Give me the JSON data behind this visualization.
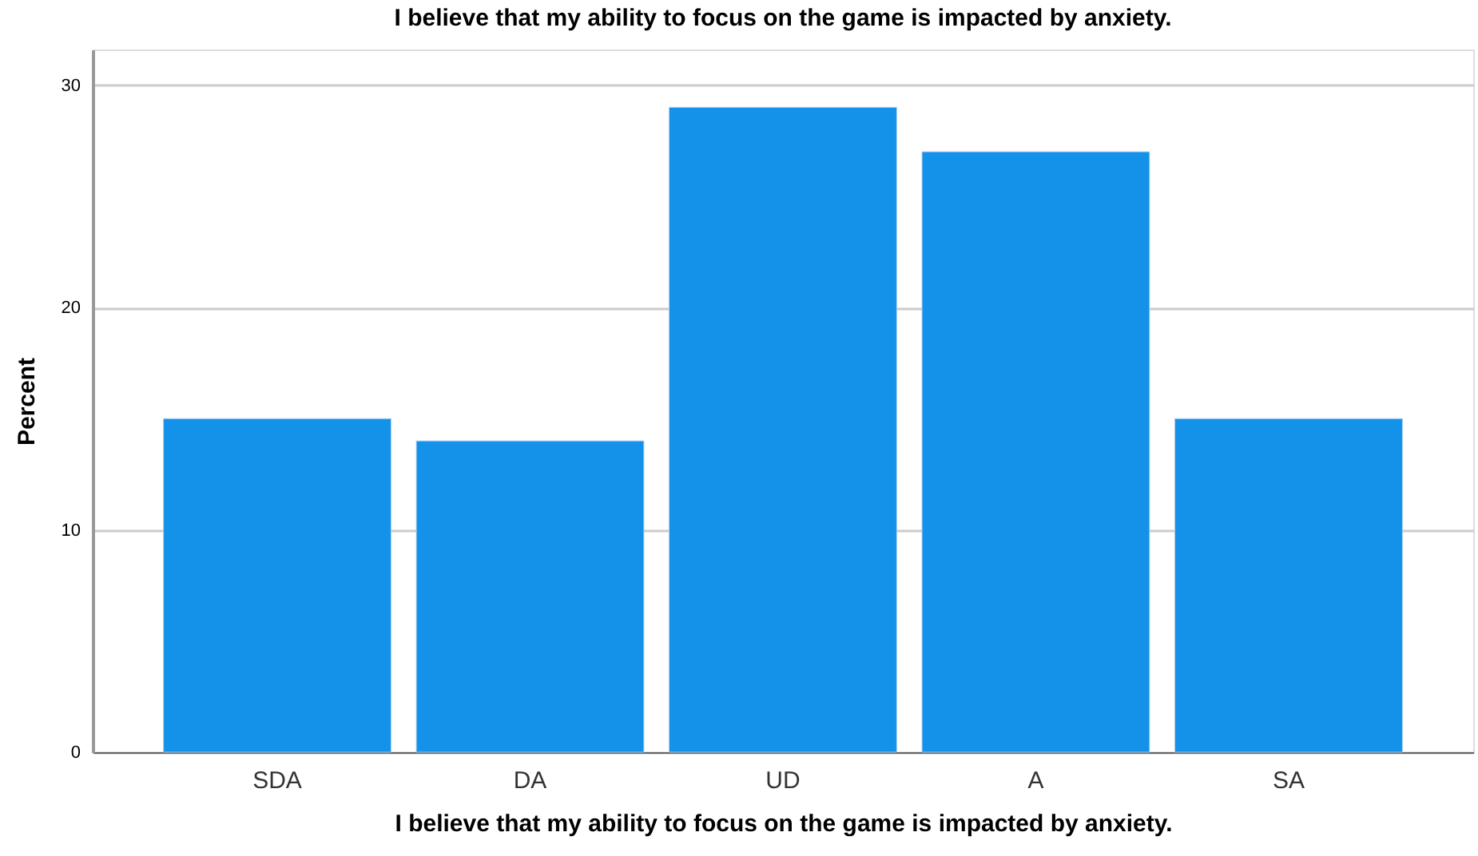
{
  "chart_data": {
    "type": "bar",
    "title": "I believe that my ability to focus on the game is impacted by anxiety.",
    "xlabel": "I believe that my ability to focus on the game is impacted by anxiety.",
    "ylabel": "Percent",
    "categories": [
      "SDA",
      "DA",
      "UD",
      "A",
      "SA"
    ],
    "values": [
      15,
      14,
      29,
      27,
      15
    ],
    "color": "#1491e8",
    "ylim": [
      0,
      31.6
    ],
    "yticks": [
      0,
      10,
      20,
      30
    ],
    "grid": "y"
  }
}
